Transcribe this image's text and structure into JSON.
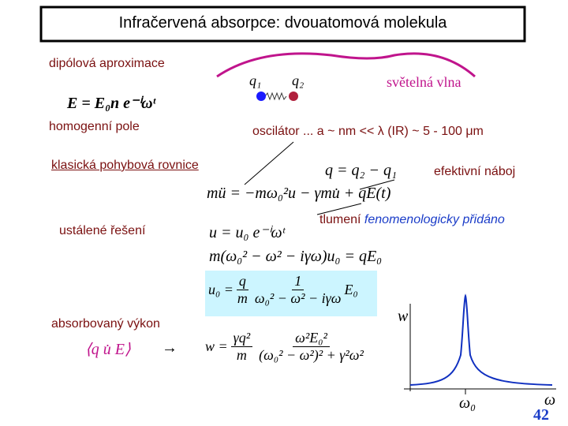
{
  "title": "Infračervená absorpce: dvouatomová molekula",
  "labels": {
    "dipole": "dipólová aproximace",
    "homogeneous": "homogenní pole",
    "classical": "klasická pohybová rovnice",
    "steady": "ustálené řešení",
    "absorbed": "absorbovaný výkon",
    "light": "světelná vlna",
    "oscillator": "oscilátor ... a ~ nm << λ (IR) ~ 5 - 100 μm",
    "charge": "efektivní náboj",
    "damping": "tlumení",
    "damping_note": "fenomenologicky přidáno"
  },
  "molecule": {
    "q1": "q₁",
    "q2": "q₂"
  },
  "equations": {
    "field": "E = E₀n e⁻ⁱωᵗ",
    "charge": "q = q₂ − q₁",
    "motion": "mü = −mω₀²u − γmu̇ + qE(t)",
    "ansatz": "u = u₀ e⁻ⁱωᵗ",
    "amplitude_eq": "m(ω₀² − ω² − iγω)u₀ = qE₀",
    "solution": {
      "lhs": "u₀ =",
      "num1": "q",
      "den1": "m",
      "num2": "1",
      "den2": "ω₀² − ω² − iγω",
      "tail": "E₀"
    },
    "power_avg": "⟨q u̇ E⟩",
    "arrow": "→",
    "power": {
      "lhs": "w =",
      "num1": "γq²",
      "den1": "m",
      "num2": "ω²E₀²",
      "den2": "(ω₀² − ω²)² + γ²ω²"
    }
  },
  "plot": {
    "y_label": "w",
    "x_label": "ω",
    "x_tick": "ω₀"
  },
  "page_number": "42"
}
